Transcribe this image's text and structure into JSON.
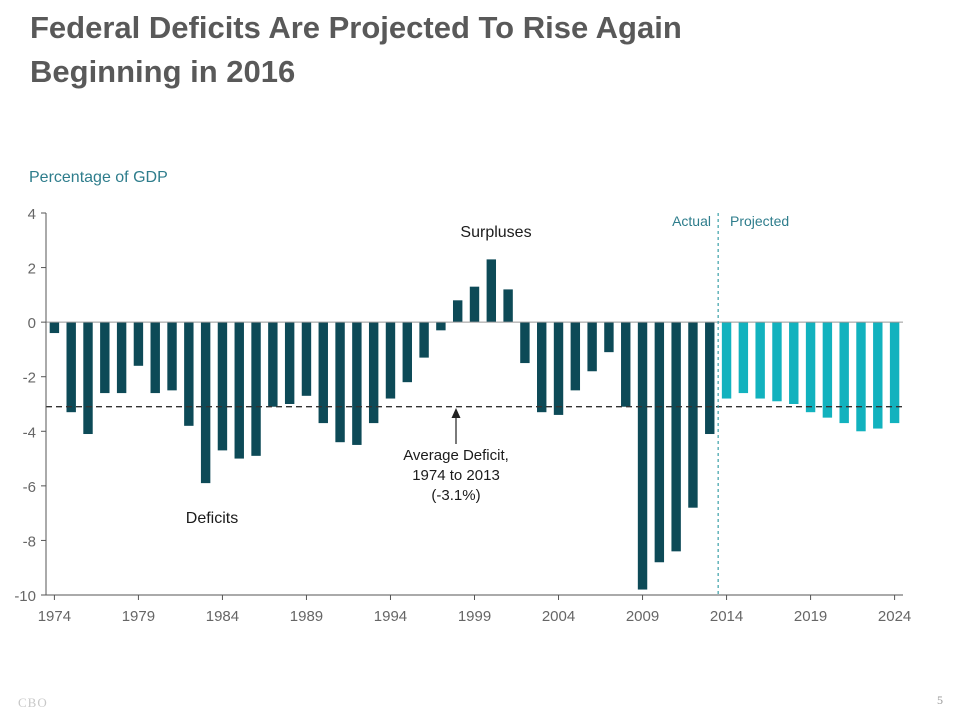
{
  "slide": {
    "title_line1": "Federal Deficits Are Projected To Rise Again",
    "title_line2": "Beginning in 2016",
    "footer_logo": "CBO",
    "page_number": "5"
  },
  "chart_data": {
    "type": "bar",
    "ylabel": "Percentage of GDP",
    "ylim": [
      -10,
      4
    ],
    "yticks": [
      4,
      2,
      0,
      -2,
      -4,
      -6,
      -8,
      -10
    ],
    "xticks": [
      1974,
      1979,
      1984,
      1989,
      1994,
      1999,
      2004,
      2009,
      2014,
      2019,
      2024
    ],
    "series": [
      {
        "name": "Actual",
        "color": "#0d4a57",
        "x": [
          1974,
          1975,
          1976,
          1977,
          1978,
          1979,
          1980,
          1981,
          1982,
          1983,
          1984,
          1985,
          1986,
          1987,
          1988,
          1989,
          1990,
          1991,
          1992,
          1993,
          1994,
          1995,
          1996,
          1997,
          1998,
          1999,
          2000,
          2001,
          2002,
          2003,
          2004,
          2005,
          2006,
          2007,
          2008,
          2009,
          2010,
          2011,
          2012,
          2013
        ],
        "values": [
          -0.4,
          -3.3,
          -4.1,
          -2.6,
          -2.6,
          -1.6,
          -2.6,
          -2.5,
          -3.8,
          -5.9,
          -4.7,
          -5.0,
          -4.9,
          -3.1,
          -3.0,
          -2.7,
          -3.7,
          -4.4,
          -4.5,
          -3.7,
          -2.8,
          -2.2,
          -1.3,
          -0.3,
          0.8,
          1.3,
          2.3,
          1.2,
          -1.5,
          -3.3,
          -3.4,
          -2.5,
          -1.8,
          -1.1,
          -3.1,
          -9.8,
          -8.8,
          -8.4,
          -6.8,
          -4.1
        ]
      },
      {
        "name": "Projected",
        "color": "#12b2be",
        "x": [
          2014,
          2015,
          2016,
          2017,
          2018,
          2019,
          2020,
          2021,
          2022,
          2023,
          2024
        ],
        "values": [
          -2.8,
          -2.6,
          -2.8,
          -2.9,
          -3.0,
          -3.3,
          -3.5,
          -3.7,
          -4.0,
          -3.9,
          -3.7
        ]
      }
    ],
    "average_deficit": -3.1,
    "annotations": {
      "surpluses": "Surpluses",
      "deficits": "Deficits",
      "average_line1": "Average Deficit,",
      "average_line2": "1974 to 2013",
      "average_line3": "(-3.1%)",
      "actual": "Actual",
      "projected": "Projected"
    },
    "colors": {
      "axis_label": "#2e7d8c",
      "tick": "#666666",
      "actual": "#0d4a57",
      "projected": "#12b2be",
      "divider": "#3aa0a8"
    }
  }
}
